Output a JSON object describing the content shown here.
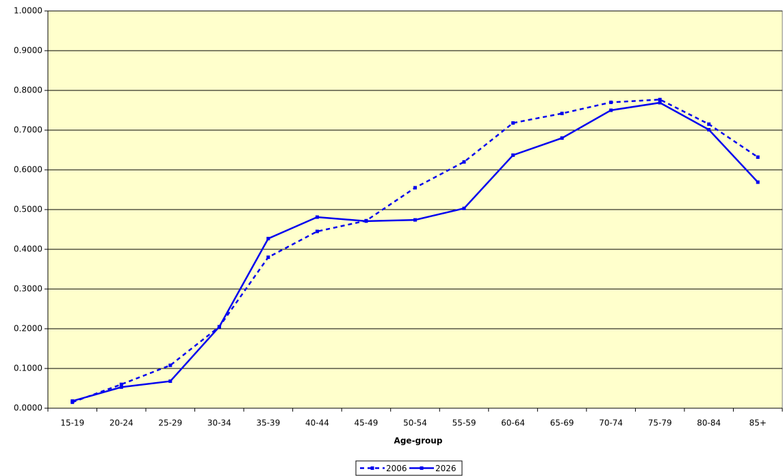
{
  "chart_data": {
    "type": "line",
    "x_label": "Age-group",
    "categories": [
      "15-19",
      "20-24",
      "25-29",
      "30-34",
      "35-39",
      "40-44",
      "45-49",
      "50-54",
      "55-59",
      "60-64",
      "65-69",
      "70-74",
      "75-79",
      "80-84",
      "85+"
    ],
    "series": [
      {
        "name": "2006",
        "color": "#0000ee",
        "dashed": true,
        "values": [
          0.015,
          0.06,
          0.108,
          0.205,
          0.38,
          0.445,
          0.472,
          0.555,
          0.62,
          0.718,
          0.742,
          0.77,
          0.777,
          0.715,
          0.632
        ]
      },
      {
        "name": "2026",
        "color": "#0000ee",
        "dashed": false,
        "values": [
          0.018,
          0.053,
          0.068,
          0.205,
          0.427,
          0.481,
          0.471,
          0.474,
          0.503,
          0.637,
          0.68,
          0.75,
          0.769,
          0.701,
          0.569
        ]
      }
    ],
    "ylim": [
      0,
      1
    ],
    "yticks": [
      {
        "value": 0,
        "label": "0.0000"
      },
      {
        "value": 0.1,
        "label": "0.1000"
      },
      {
        "value": 0.2,
        "label": "0.2000"
      },
      {
        "value": 0.3,
        "label": "0.3000"
      },
      {
        "value": 0.4,
        "label": "0.4000"
      },
      {
        "value": 0.5,
        "label": "0.5000"
      },
      {
        "value": 0.6,
        "label": "0.6000"
      },
      {
        "value": 0.7,
        "label": "0.7000"
      },
      {
        "value": 0.8,
        "label": "0.8000"
      },
      {
        "value": 0.9,
        "label": "0.9000"
      },
      {
        "value": 1,
        "label": "1.0000"
      }
    ],
    "grid": true,
    "plot_background": "#ffffcc",
    "legend": "bottom"
  }
}
